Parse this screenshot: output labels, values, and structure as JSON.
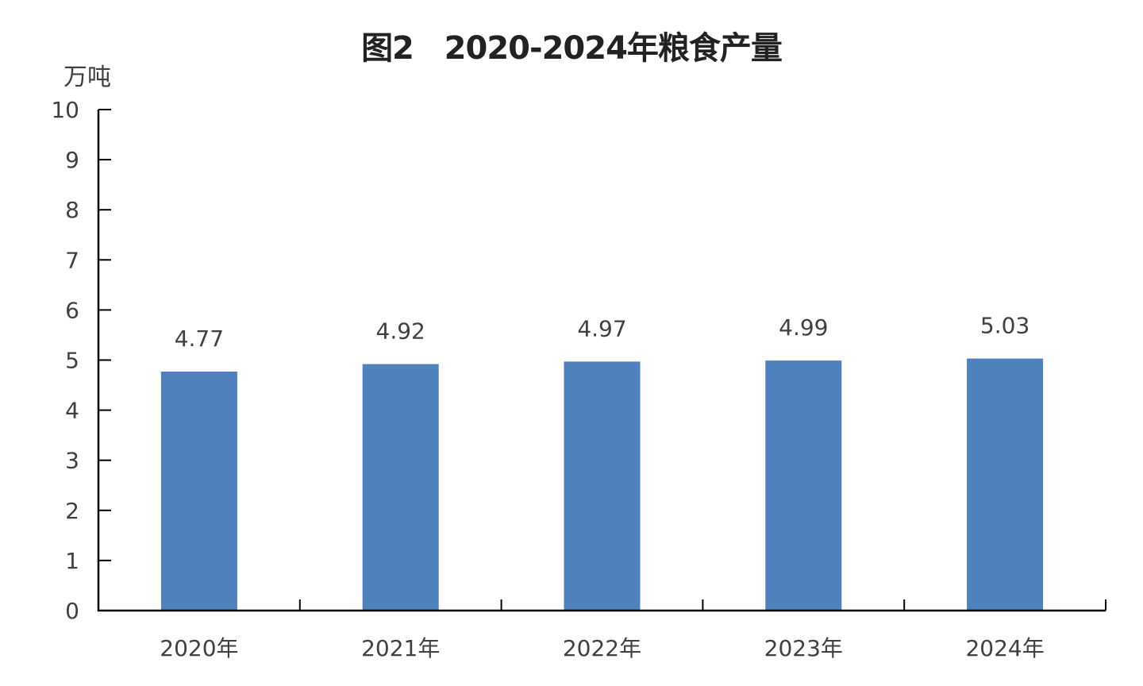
{
  "chart_data": {
    "type": "bar",
    "title": "图2   2020-2024年粮食产量",
    "ylabel": "万吨",
    "xlabel": "",
    "categories": [
      "2020年",
      "2021年",
      "2022年",
      "2023年",
      "2024年"
    ],
    "values": [
      4.77,
      4.92,
      4.97,
      4.99,
      5.03
    ],
    "data_labels": [
      "4.77",
      "4.92",
      "4.97",
      "4.99",
      "5.03"
    ],
    "ylim": [
      0,
      10
    ],
    "yticks": [
      0,
      1,
      2,
      3,
      4,
      5,
      6,
      7,
      8,
      9,
      10
    ],
    "grid": false,
    "legend": "none",
    "bar_color": "#4f81bd"
  }
}
